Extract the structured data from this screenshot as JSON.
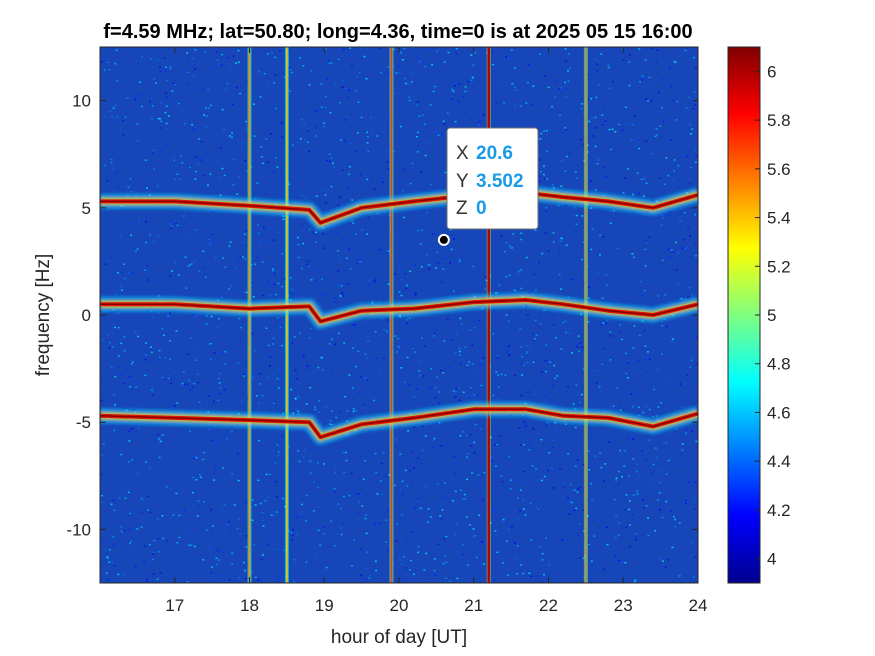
{
  "chart_data": {
    "type": "heatmap",
    "title": "f=4.59 MHz;  lat=50.80; long=4.36, time=0 is at 2025 05 15 16:00",
    "xlabel": "hour of day [UT]",
    "ylabel": "frequency [Hz]",
    "xlim": [
      16,
      24
    ],
    "ylim": [
      -12.5,
      12.5
    ],
    "xticks": [
      17,
      18,
      19,
      20,
      21,
      22,
      23,
      24
    ],
    "xtick_labels": [
      "17",
      "18",
      "19",
      "20",
      "21",
      "22",
      "23",
      "24"
    ],
    "yticks": [
      -10,
      -5,
      0,
      5,
      10
    ],
    "ytick_labels": [
      "-10",
      "-5",
      "0",
      "5",
      "10"
    ],
    "colorbar": {
      "range": [
        3.9,
        6.1
      ],
      "ticks": [
        4,
        4.2,
        4.4,
        4.6,
        4.8,
        5,
        5.2,
        5.4,
        5.6,
        5.8,
        6
      ],
      "tick_labels": [
        "4",
        "4.2",
        "4.4",
        "4.6",
        "4.8",
        "5",
        "5.2",
        "5.4",
        "5.6",
        "5.8",
        "6"
      ],
      "colormap": "jet"
    },
    "traces": [
      {
        "name": "upper",
        "x": [
          16,
          17,
          18,
          18.8,
          18.95,
          19.5,
          20.2,
          21,
          21.7,
          22.2,
          22.8,
          23.4,
          24
        ],
        "y": [
          5.3,
          5.3,
          5.1,
          4.9,
          4.3,
          5.0,
          5.3,
          5.6,
          5.7,
          5.5,
          5.3,
          5.0,
          5.6
        ]
      },
      {
        "name": "middle",
        "x": [
          16,
          17,
          18,
          18.8,
          18.95,
          19.5,
          20.2,
          21,
          21.7,
          22.2,
          22.8,
          23.4,
          24
        ],
        "y": [
          0.5,
          0.5,
          0.3,
          0.4,
          -0.3,
          0.2,
          0.3,
          0.6,
          0.7,
          0.5,
          0.2,
          0.0,
          0.5
        ]
      },
      {
        "name": "lower",
        "x": [
          16,
          17,
          18,
          18.8,
          18.95,
          19.5,
          20.2,
          21,
          21.7,
          22.2,
          22.8,
          23.4,
          24
        ],
        "y": [
          -4.7,
          -4.8,
          -4.9,
          -5.0,
          -5.7,
          -5.1,
          -4.8,
          -4.4,
          -4.4,
          -4.7,
          -4.8,
          -5.2,
          -4.6
        ]
      }
    ],
    "vertical_lines": [
      {
        "x": 18.0,
        "strength": 0.55
      },
      {
        "x": 18.5,
        "strength": 0.45
      },
      {
        "x": 19.9,
        "strength": 0.75
      },
      {
        "x": 21.2,
        "strength": 1.0
      },
      {
        "x": 22.5,
        "strength": 0.6
      }
    ],
    "datatip": {
      "x_key": "X",
      "x_value": "20.6",
      "y_key": "Y",
      "y_value": "3.502",
      "z_key": "Z",
      "z_value": "0",
      "point": {
        "x": 20.6,
        "y": 3.502
      }
    }
  }
}
